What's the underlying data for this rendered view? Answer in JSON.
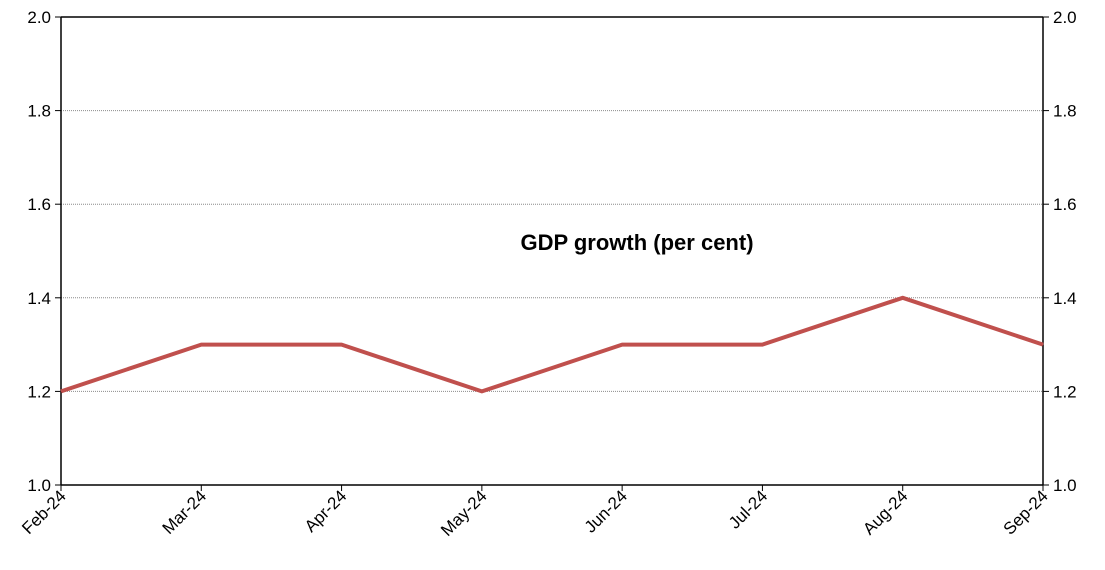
{
  "chart_data": {
    "type": "line",
    "title": "",
    "xlabel": "",
    "ylabel": "",
    "categories": [
      "Feb-24",
      "Mar-24",
      "Apr-24",
      "May-24",
      "Jun-24",
      "Jul-24",
      "Aug-24",
      "Sep-24"
    ],
    "series": [
      {
        "color": "#c0504d",
        "values": [
          1.2,
          1.3,
          1.3,
          1.2,
          1.3,
          1.3,
          1.4,
          1.3
        ]
      }
    ],
    "ylim": [
      1.0,
      2.0
    ],
    "y_ticks": [
      "1.0",
      "1.2",
      "1.4",
      "1.6",
      "1.8",
      "2.0"
    ],
    "y_axis_right_ticks": [
      "1.0",
      "1.2",
      "1.4",
      "1.6",
      "1.8",
      "2.0"
    ],
    "annotation": "GDP growth (per cent)",
    "grid": true,
    "legend": "none"
  }
}
